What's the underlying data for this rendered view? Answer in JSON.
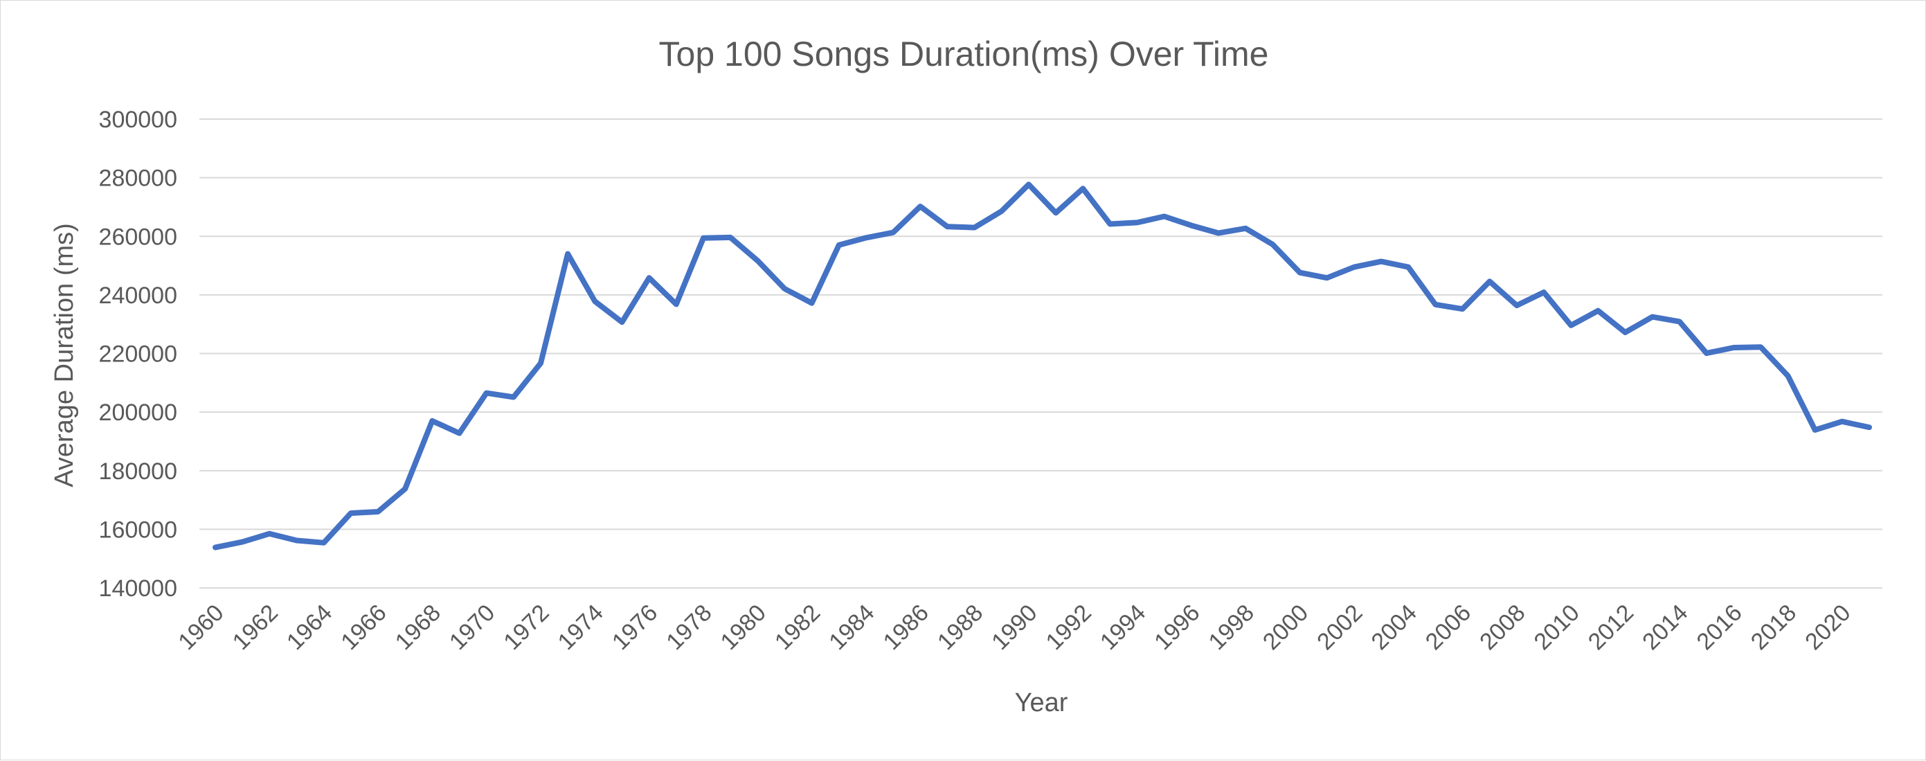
{
  "chart_data": {
    "type": "line",
    "title": "Top 100 Songs Duration(ms) Over Time",
    "xlabel": "Year",
    "ylabel": "Average Duration (ms)",
    "ylim": [
      140000,
      300000
    ],
    "y_ticks": [
      140000,
      160000,
      180000,
      200000,
      220000,
      240000,
      260000,
      280000,
      300000
    ],
    "x_ticks": [
      1960,
      1962,
      1964,
      1966,
      1968,
      1970,
      1972,
      1974,
      1976,
      1978,
      1980,
      1982,
      1984,
      1986,
      1988,
      1990,
      1992,
      1994,
      1996,
      1998,
      2000,
      2002,
      2004,
      2006,
      2008,
      2010,
      2012,
      2014,
      2016,
      2018,
      2020
    ],
    "x_tick_labels": [
      "1960",
      "1962",
      "1964",
      "1966",
      "1968",
      "1970",
      "1972",
      "1974",
      "1976",
      "1978",
      "1980",
      "1982",
      "1984",
      "1986",
      "1988",
      "1990",
      "1992",
      "1994",
      "1996",
      "1998",
      "2000",
      "2002",
      "2004",
      "2006",
      "2008",
      "2010",
      "2012",
      "2014",
      "2016",
      "2018",
      "2020"
    ],
    "y_tick_labels": [
      "140000",
      "160000",
      "180000",
      "200000",
      "220000",
      "240000",
      "260000",
      "280000",
      "300000"
    ],
    "grid": true,
    "legend": "none",
    "line_color": "#4472c4",
    "gridline_color": "#d9d9d9",
    "text_color": "#595959",
    "x": [
      1960,
      1961,
      1962,
      1963,
      1964,
      1965,
      1966,
      1967,
      1968,
      1969,
      1970,
      1971,
      1972,
      1973,
      1974,
      1975,
      1976,
      1977,
      1978,
      1979,
      1980,
      1981,
      1982,
      1983,
      1984,
      1985,
      1986,
      1987,
      1988,
      1989,
      1990,
      1991,
      1992,
      1993,
      1994,
      1995,
      1996,
      1997,
      1998,
      1999,
      2000,
      2001,
      2002,
      2003,
      2004,
      2005,
      2006,
      2007,
      2008,
      2009,
      2010,
      2011,
      2012,
      2013,
      2014,
      2015,
      2016,
      2017,
      2018,
      2019,
      2020,
      2021
    ],
    "series": [
      {
        "values": [
          153800,
          155700,
          158500,
          156200,
          155400,
          165500,
          166000,
          173800,
          197000,
          192800,
          206500,
          205100,
          216700,
          254000,
          237800,
          230700,
          245800,
          236800,
          259400,
          259600,
          251700,
          242100,
          237200,
          257000,
          259500,
          261300,
          270200,
          263300,
          263000,
          268600,
          277700,
          268000,
          276300,
          264200,
          264700,
          266800,
          263700,
          261100,
          262700,
          257200,
          247600,
          245800,
          249500,
          251400,
          249500,
          236700,
          235200,
          244600,
          236400,
          240900,
          229600,
          234600,
          227200,
          232500,
          230900,
          220100,
          222000,
          222200,
          212400,
          193900,
          196800,
          194800
        ]
      }
    ]
  }
}
